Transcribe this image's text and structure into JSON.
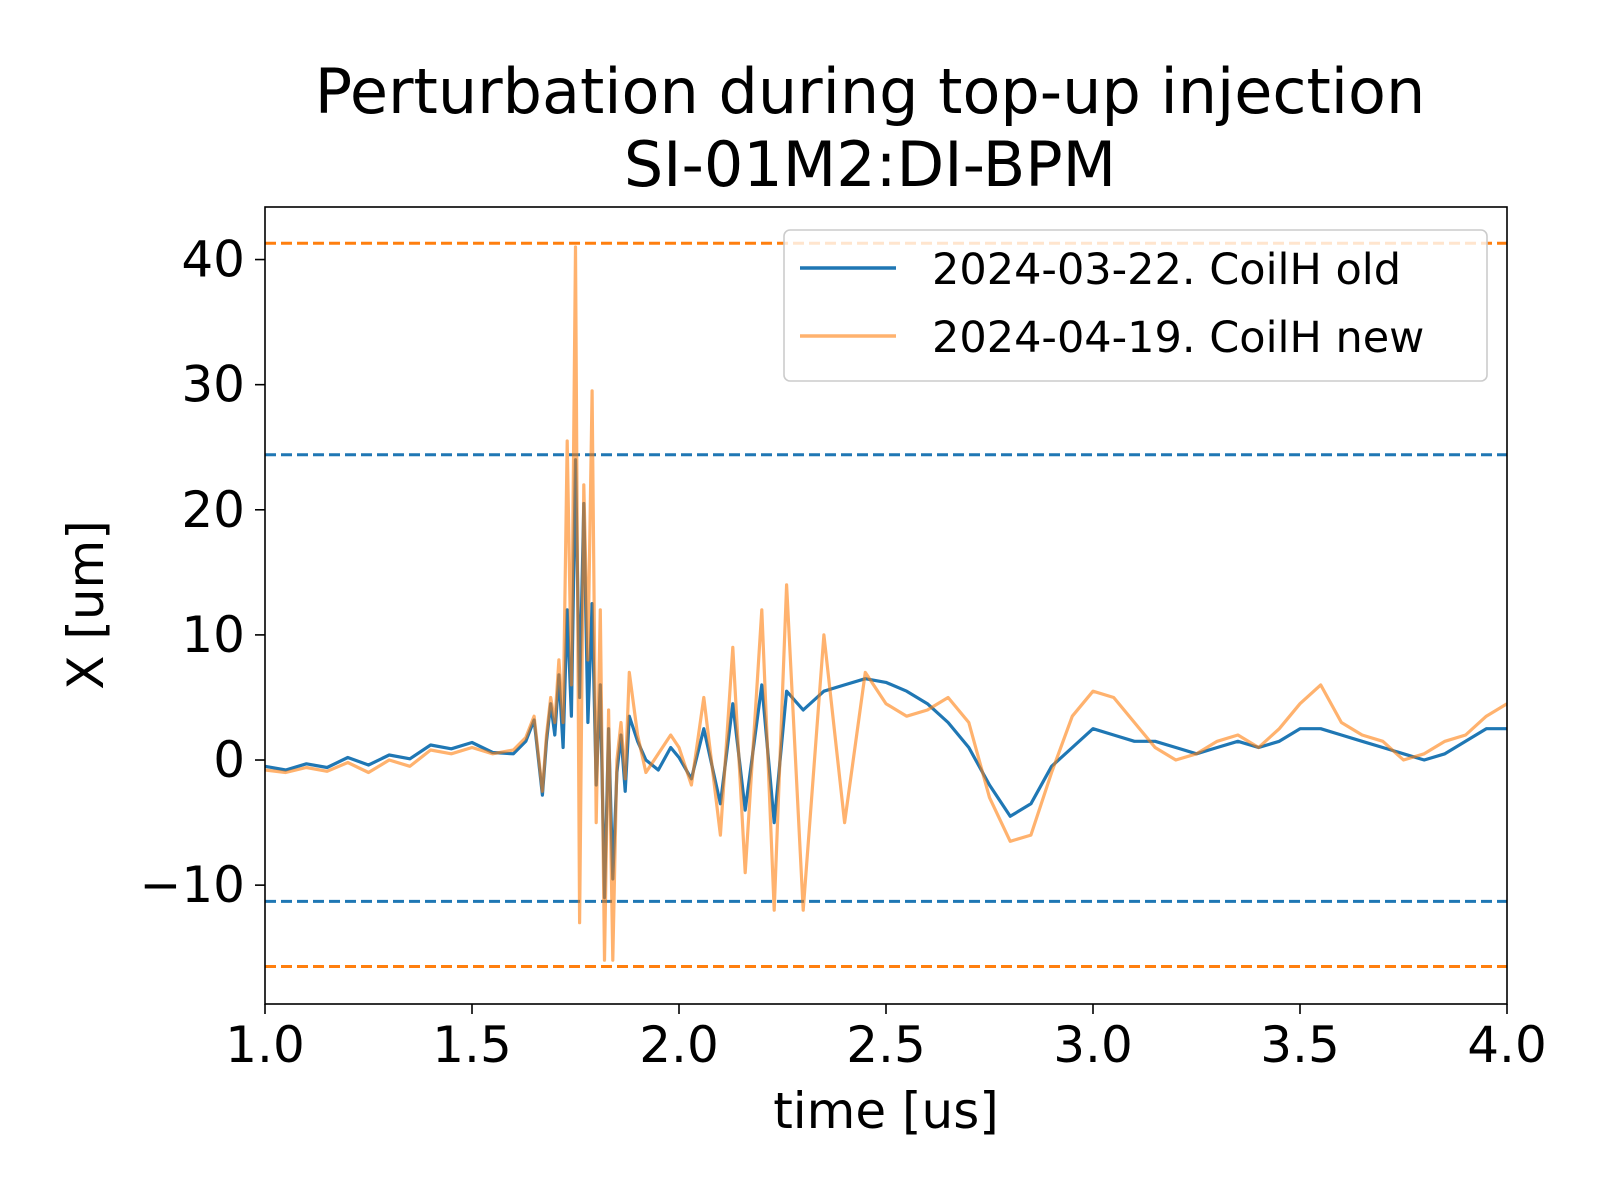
{
  "chart_data": {
    "type": "line",
    "title": "Perturbation during top-up injection",
    "subtitle": "SI-01M2:DI-BPM",
    "xlabel": "time [us]",
    "ylabel": "X [um]",
    "xlim": [
      1.0,
      4.0
    ],
    "ylim": [
      -19.5,
      44.2
    ],
    "xticks": [
      "1.0",
      "1.5",
      "2.0",
      "2.5",
      "3.0",
      "3.5",
      "4.0"
    ],
    "yticks": [
      "−10",
      "0",
      "10",
      "20",
      "30",
      "40"
    ],
    "legend_position": "upper-right",
    "grid": false,
    "series": [
      {
        "name": "2024-03-22. CoilH old",
        "color": "#1f77b4",
        "opacity": 1.0,
        "x": [
          1.0,
          1.05,
          1.1,
          1.15,
          1.2,
          1.25,
          1.3,
          1.35,
          1.4,
          1.45,
          1.5,
          1.55,
          1.6,
          1.63,
          1.65,
          1.67,
          1.68,
          1.69,
          1.7,
          1.71,
          1.72,
          1.73,
          1.74,
          1.75,
          1.76,
          1.77,
          1.78,
          1.79,
          1.8,
          1.81,
          1.82,
          1.83,
          1.84,
          1.85,
          1.86,
          1.87,
          1.88,
          1.9,
          1.92,
          1.95,
          1.98,
          2.0,
          2.03,
          2.06,
          2.1,
          2.13,
          2.16,
          2.2,
          2.23,
          2.26,
          2.3,
          2.35,
          2.4,
          2.45,
          2.5,
          2.55,
          2.6,
          2.65,
          2.7,
          2.75,
          2.8,
          2.85,
          2.9,
          2.95,
          3.0,
          3.05,
          3.1,
          3.15,
          3.2,
          3.25,
          3.3,
          3.35,
          3.4,
          3.45,
          3.5,
          3.55,
          3.6,
          3.65,
          3.7,
          3.75,
          3.8,
          3.85,
          3.9,
          3.95,
          4.0
        ],
        "y": [
          -0.5,
          -0.8,
          -0.3,
          -0.6,
          0.2,
          -0.4,
          0.4,
          0.1,
          1.2,
          0.9,
          1.4,
          0.6,
          0.5,
          1.5,
          3.2,
          -2.8,
          1.5,
          4.5,
          2.0,
          6.8,
          1.0,
          12.0,
          3.5,
          24.0,
          5.0,
          20.5,
          3.0,
          12.5,
          -2.0,
          6.0,
          -11.0,
          2.5,
          -9.5,
          -1.0,
          2.0,
          -2.5,
          3.5,
          1.5,
          0.0,
          -0.8,
          1.0,
          0.2,
          -1.5,
          2.5,
          -3.5,
          4.5,
          -4.0,
          6.0,
          -5.0,
          5.5,
          4.0,
          5.5,
          6.0,
          6.5,
          6.2,
          5.5,
          4.5,
          3.0,
          1.0,
          -2.0,
          -4.5,
          -3.5,
          -0.5,
          1.0,
          2.5,
          2.0,
          1.5,
          1.5,
          1.0,
          0.5,
          1.0,
          1.5,
          1.0,
          1.5,
          2.5,
          2.5,
          2.0,
          1.5,
          1.0,
          0.5,
          0.0,
          0.5,
          1.5,
          2.5,
          2.5
        ]
      },
      {
        "name": "2024-04-19. CoilH new",
        "color": "#ff7f0e",
        "opacity": 0.6,
        "x": [
          1.0,
          1.05,
          1.1,
          1.15,
          1.2,
          1.25,
          1.3,
          1.35,
          1.4,
          1.45,
          1.5,
          1.55,
          1.6,
          1.63,
          1.65,
          1.67,
          1.68,
          1.69,
          1.7,
          1.71,
          1.72,
          1.73,
          1.74,
          1.75,
          1.76,
          1.77,
          1.78,
          1.79,
          1.8,
          1.81,
          1.82,
          1.83,
          1.84,
          1.85,
          1.86,
          1.87,
          1.88,
          1.9,
          1.92,
          1.95,
          1.98,
          2.0,
          2.03,
          2.06,
          2.1,
          2.13,
          2.16,
          2.2,
          2.23,
          2.26,
          2.3,
          2.35,
          2.4,
          2.45,
          2.5,
          2.55,
          2.6,
          2.65,
          2.7,
          2.75,
          2.8,
          2.85,
          2.9,
          2.95,
          3.0,
          3.05,
          3.1,
          3.15,
          3.2,
          3.25,
          3.3,
          3.35,
          3.4,
          3.45,
          3.5,
          3.55,
          3.6,
          3.65,
          3.7,
          3.75,
          3.8,
          3.85,
          3.9,
          3.95,
          4.0
        ],
        "y": [
          -0.8,
          -1.0,
          -0.6,
          -0.9,
          -0.2,
          -1.0,
          0.0,
          -0.5,
          0.8,
          0.5,
          1.0,
          0.5,
          0.8,
          1.8,
          3.5,
          -2.5,
          2.0,
          5.0,
          3.0,
          8.0,
          3.0,
          25.5,
          6.0,
          41.0,
          -13.0,
          22.0,
          8.0,
          29.5,
          -5.0,
          12.0,
          -16.0,
          4.0,
          -16.0,
          0.0,
          3.0,
          -1.5,
          7.0,
          2.0,
          -1.0,
          0.5,
          2.0,
          1.0,
          -2.0,
          5.0,
          -6.0,
          9.0,
          -9.0,
          12.0,
          -12.0,
          14.0,
          -12.0,
          10.0,
          -5.0,
          7.0,
          4.5,
          3.5,
          4.0,
          5.0,
          3.0,
          -3.0,
          -6.5,
          -6.0,
          -1.0,
          3.5,
          5.5,
          5.0,
          3.0,
          1.0,
          0.0,
          0.5,
          1.5,
          2.0,
          1.0,
          2.5,
          4.5,
          6.0,
          3.0,
          2.0,
          1.5,
          0.0,
          0.5,
          1.5,
          2.0,
          3.5,
          4.5
        ]
      }
    ],
    "reference_lines": [
      {
        "y": 41.3,
        "color": "#ff7f0e",
        "style": "dashed"
      },
      {
        "y": 24.4,
        "color": "#1f77b4",
        "style": "dashed"
      },
      {
        "y": -11.3,
        "color": "#1f77b4",
        "style": "dashed"
      },
      {
        "y": -16.5,
        "color": "#ff7f0e",
        "style": "dashed"
      }
    ]
  }
}
